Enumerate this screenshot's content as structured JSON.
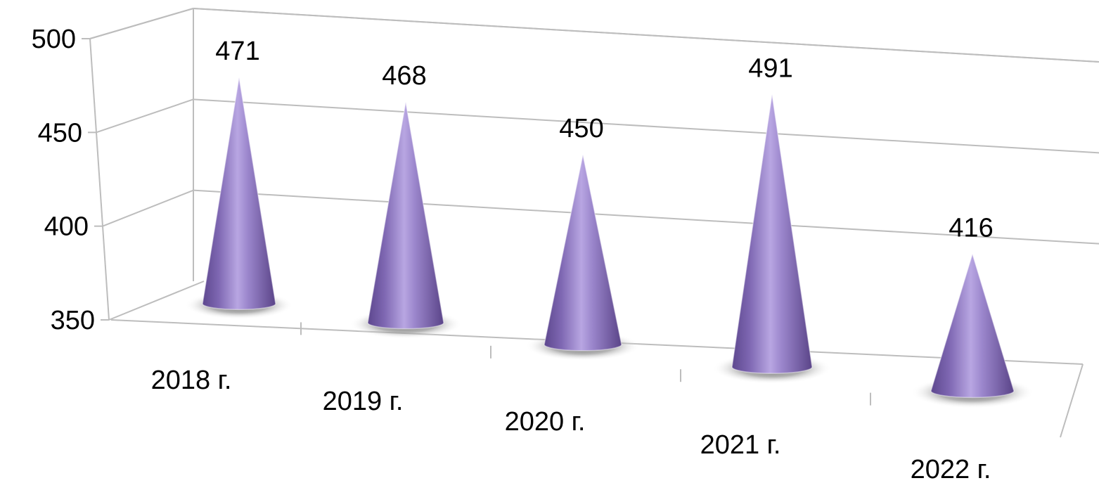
{
  "chart_data": {
    "type": "bar",
    "bar_shape": "cone",
    "projection": "3d-perspective",
    "categories": [
      "2018 г.",
      "2019 г.",
      "2020 г.",
      "2021 г.",
      "2022 г."
    ],
    "values": [
      471,
      468,
      450,
      491,
      416
    ],
    "y_ticks": [
      "350",
      "400",
      "450",
      "500"
    ],
    "ylim": [
      350,
      500
    ],
    "grid": true,
    "legend": "none",
    "title": "",
    "xlabel": "",
    "ylabel": ""
  },
  "colors": {
    "cone": "#8a72bc",
    "cone_light": "#b6a3e0",
    "cone_dark": "#5a4488",
    "grid": "#bdbdbd",
    "shadow": "#6a6a6a"
  }
}
